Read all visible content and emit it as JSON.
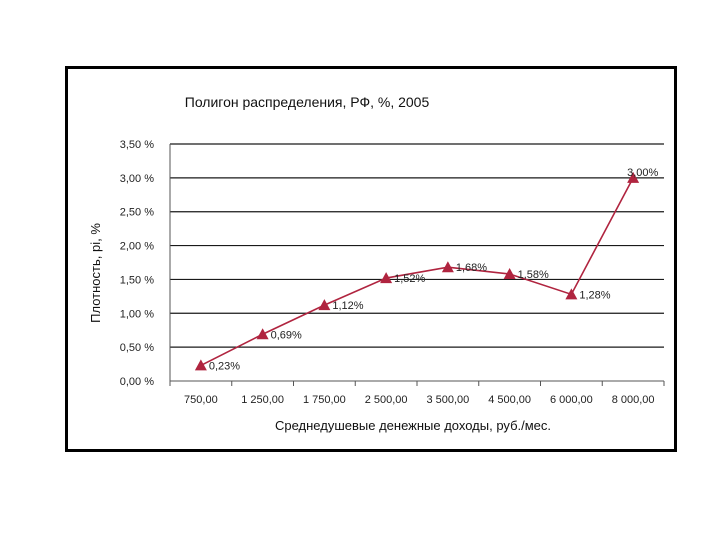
{
  "chart_data": {
    "type": "line",
    "title": "Полигон распределения, РФ, %, 2005",
    "xlabel": "Среднедушевые денежные доходы, руб./мес.",
    "ylabel": "Плотность, pi, %",
    "categories": [
      "750,00",
      "1 250,00",
      "1 750,00",
      "2 500,00",
      "3 500,00",
      "4 500,00",
      "6 000,00",
      "8 000,00"
    ],
    "y_tick_labels": [
      "0,00 %",
      "0,50 %",
      "1,00 %",
      "1,50 %",
      "2,00 %",
      "2,50 %",
      "3,00 %",
      "3,50 %"
    ],
    "series": [
      {
        "values": [
          0.23,
          0.69,
          1.12,
          1.52,
          1.68,
          1.58,
          1.28,
          3.0
        ],
        "labels": [
          "0,23%",
          "0,69%",
          "1,12%",
          "1,52%",
          "1,68%",
          "1,58%",
          "1,28%",
          "3,00%"
        ],
        "color": "#b0243f"
      }
    ],
    "ylim": [
      0,
      3.5
    ],
    "grid": true,
    "legend": false,
    "marker": "triangle"
  }
}
